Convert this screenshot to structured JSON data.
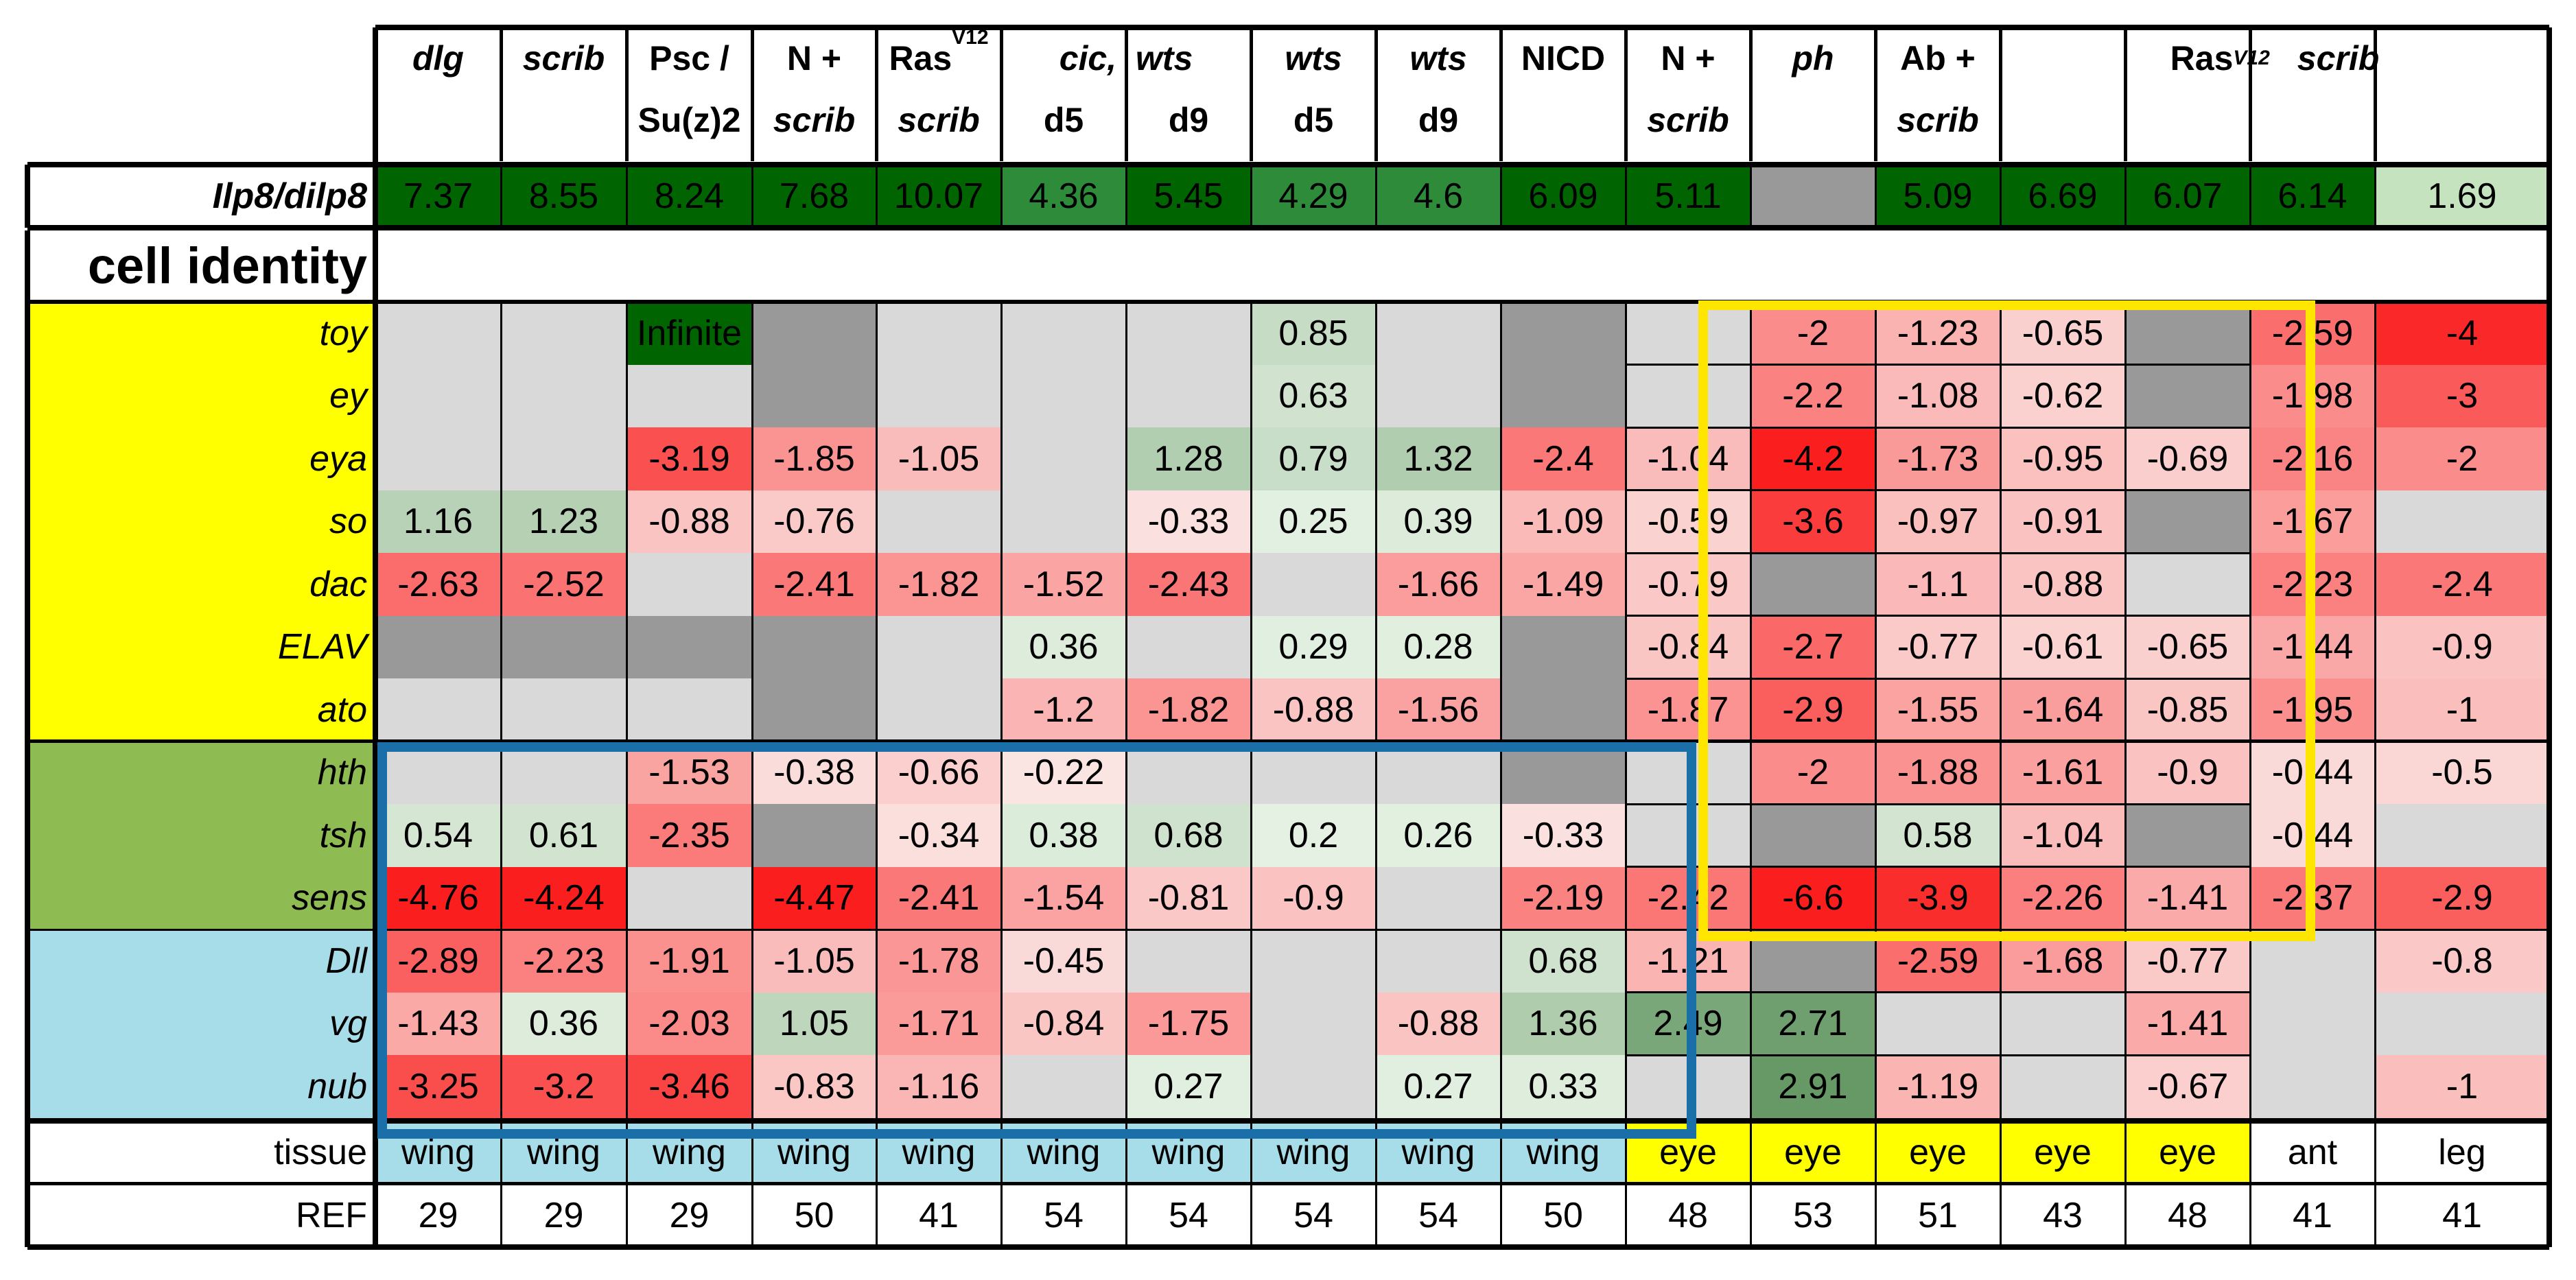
{
  "colors": {
    "yellow_group": "#ffff00",
    "green_group": "#8fbb53",
    "blue_group": "#a6dde9",
    "missing": "#d9d9d9",
    "excluded": "#999999",
    "ilp8": "#006400",
    "ilp8_mid": "#2e8b3a",
    "ilp8_light": "#c6e3c0",
    "yellow_box": "#ffe600",
    "blue_box": "#1a6fa8"
  },
  "columns": [
    {
      "line1": "dlg",
      "line2": "",
      "l1_italic": true,
      "l2_italic": false
    },
    {
      "line1": "scrib",
      "line2": "",
      "l1_italic": true,
      "l2_italic": false
    },
    {
      "line1": "Psc /",
      "line2": "Su(z)2",
      "l1_italic": false,
      "l2_italic": false
    },
    {
      "line1": "N +",
      "line2": "scrib",
      "l1_italic": false,
      "l2_italic": true
    },
    {
      "line1": "Ras",
      "line1_sup": "V12",
      "line2": "scrib",
      "l1_italic": false,
      "l2_italic": true
    },
    {
      "line1": "",
      "line2": "d5",
      "l1_italic": false,
      "l2_italic": false
    },
    {
      "line1": "",
      "line2": "d9",
      "l1_italic": false,
      "l2_italic": false
    },
    {
      "line1": "wts",
      "line2": "d5",
      "l1_italic": true,
      "l2_italic": false
    },
    {
      "line1": "wts",
      "line2": "d9",
      "l1_italic": true,
      "l2_italic": false
    },
    {
      "line1": "NICD",
      "line2": "",
      "l1_italic": false,
      "l2_italic": false
    },
    {
      "line1": "N +",
      "line2": "scrib",
      "l1_italic": false,
      "l2_italic": true
    },
    {
      "line1": "ph",
      "line2": "",
      "l1_italic": true,
      "l2_italic": false
    },
    {
      "line1": "Ab +",
      "line2": "scrib",
      "l1_italic": false,
      "l2_italic": true
    },
    {
      "line1": "",
      "line2": "",
      "l1_italic": false,
      "l2_italic": false
    },
    {
      "line1": "",
      "line2": "",
      "l1_italic": false,
      "l2_italic": false
    },
    {
      "line1": "",
      "line2": "",
      "l1_italic": false,
      "l2_italic": false
    },
    {
      "line1": "",
      "line2": "",
      "l1_italic": false,
      "l2_italic": false
    }
  ],
  "span_headers": [
    {
      "text": "cic,  wts",
      "from": 5,
      "to": 6
    },
    {
      "text": "Ras",
      "sup": "V12",
      "text2": "scrib",
      "from": 13,
      "to": 16
    }
  ],
  "ilp8": {
    "label": "Ilp8/dilp8",
    "values": [
      "7.37",
      "8.55",
      "8.24",
      "7.68",
      "10.07",
      "4.36",
      "5.45",
      "4.29",
      "4.6",
      "6.09",
      "5.11",
      "",
      "5.09",
      "6.69",
      "6.07",
      "6.14",
      "1.69"
    ],
    "shade": [
      "dark",
      "dark",
      "dark",
      "dark",
      "dark",
      "mid",
      "dark",
      "mid",
      "mid",
      "dark",
      "dark",
      "excluded",
      "dark",
      "dark",
      "dark",
      "dark",
      "light"
    ]
  },
  "cell_identity_label": "cell identity",
  "genes": [
    {
      "name": "toy",
      "group": "yellow",
      "values": [
        "",
        "",
        "Infinite",
        "X",
        "",
        "",
        "",
        "0.85",
        "",
        "X",
        "",
        "-2",
        "-1.23",
        "-0.65",
        "X",
        "-2.59",
        "-4"
      ]
    },
    {
      "name": "ey",
      "group": "yellow",
      "values": [
        "",
        "",
        "",
        "X",
        "",
        "",
        "",
        "0.63",
        "",
        "X",
        "",
        "-2.2",
        "-1.08",
        "-0.62",
        "X",
        "-1.98",
        "-3"
      ]
    },
    {
      "name": "eya",
      "group": "yellow",
      "values": [
        "",
        "",
        "-3.19",
        "-1.85",
        "-1.05",
        "",
        "1.28",
        "0.79",
        "1.32",
        "-2.4",
        "-1.04",
        "-4.2",
        "-1.73",
        "-0.95",
        "-0.69",
        "-2.16",
        "-2"
      ]
    },
    {
      "name": "so",
      "group": "yellow",
      "values": [
        "1.16",
        "1.23",
        "-0.88",
        "-0.76",
        "",
        "",
        "-0.33",
        "0.25",
        "0.39",
        "-1.09",
        "-0.59",
        "-3.6",
        "-0.97",
        "-0.91",
        "X",
        "-1.67",
        ""
      ]
    },
    {
      "name": "dac",
      "group": "yellow",
      "values": [
        "-2.63",
        "-2.52",
        "",
        "-2.41",
        "-1.82",
        "-1.52",
        "-2.43",
        "",
        "-1.66",
        "-1.49",
        "-0.79",
        "X",
        "-1.1",
        "-0.88",
        "",
        "-2.23",
        "-2.4"
      ]
    },
    {
      "name": "ELAV",
      "group": "yellow",
      "values": [
        "X",
        "X",
        "X",
        "X",
        "",
        "0.36",
        "",
        "0.29",
        "0.28",
        "X",
        "-0.84",
        "-2.7",
        "-0.77",
        "-0.61",
        "-0.65",
        "-1.44",
        "-0.9"
      ]
    },
    {
      "name": "ato",
      "group": "yellow",
      "values": [
        "",
        "",
        "",
        "X",
        "",
        "-1.2",
        "-1.82",
        "-0.88",
        "-1.56",
        "X",
        "-1.87",
        "-2.9",
        "-1.55",
        "-1.64",
        "-0.85",
        "-1.95",
        "-1"
      ]
    },
    {
      "name": "hth",
      "group": "green",
      "values": [
        "",
        "",
        "-1.53",
        "-0.38",
        "-0.66",
        "-0.22",
        "",
        "",
        "",
        "X",
        "",
        "-2",
        "-1.88",
        "-1.61",
        "-0.9",
        "-0.44",
        "-0.5"
      ]
    },
    {
      "name": "tsh",
      "group": "green",
      "values": [
        "0.54",
        "0.61",
        "-2.35",
        "X",
        "-0.34",
        "0.38",
        "0.68",
        "0.2",
        "0.26",
        "-0.33",
        "",
        "X",
        "0.58",
        "-1.04",
        "X",
        "-0.44",
        ""
      ]
    },
    {
      "name": "sens",
      "group": "green",
      "values": [
        "-4.76",
        "-4.24",
        "",
        "-4.47",
        "-2.41",
        "-1.54",
        "-0.81",
        "-0.9",
        "",
        "-2.19",
        "-2.42",
        "-6.6",
        "-3.9",
        "-2.26",
        "-1.41",
        "-2.37",
        "-2.9"
      ]
    },
    {
      "name": "Dll",
      "group": "blue",
      "values": [
        "-2.89",
        "-2.23",
        "-1.91",
        "-1.05",
        "-1.78",
        "-0.45",
        "",
        "",
        "",
        "0.68",
        "-1.21",
        "X",
        "-2.59",
        "-1.68",
        "-0.77",
        "",
        "-0.8"
      ]
    },
    {
      "name": "vg",
      "group": "blue",
      "values": [
        "-1.43",
        "0.36",
        "-2.03",
        "1.05",
        "-1.71",
        "-0.84",
        "-1.75",
        "",
        "-0.88",
        "1.36",
        "2.49",
        "2.71",
        "",
        "",
        "-1.41",
        "",
        ""
      ]
    },
    {
      "name": "nub",
      "group": "blue",
      "values": [
        "-3.25",
        "-3.2",
        "-3.46",
        "-0.83",
        "-1.16",
        "",
        "0.27",
        "",
        "0.27",
        "0.33",
        "",
        "2.91",
        "-1.19",
        "",
        "-0.67",
        "",
        "-1"
      ]
    }
  ],
  "tissue": {
    "label": "tissue",
    "values": [
      "wing",
      "wing",
      "wing",
      "wing",
      "wing",
      "wing",
      "wing",
      "wing",
      "wing",
      "wing",
      "eye",
      "eye",
      "eye",
      "eye",
      "eye",
      "ant",
      "leg"
    ]
  },
  "ref": {
    "label": "REF",
    "values": [
      "29",
      "29",
      "29",
      "50",
      "41",
      "54",
      "54",
      "54",
      "54",
      "50",
      "48",
      "53",
      "51",
      "43",
      "48",
      "41",
      "41"
    ]
  }
}
